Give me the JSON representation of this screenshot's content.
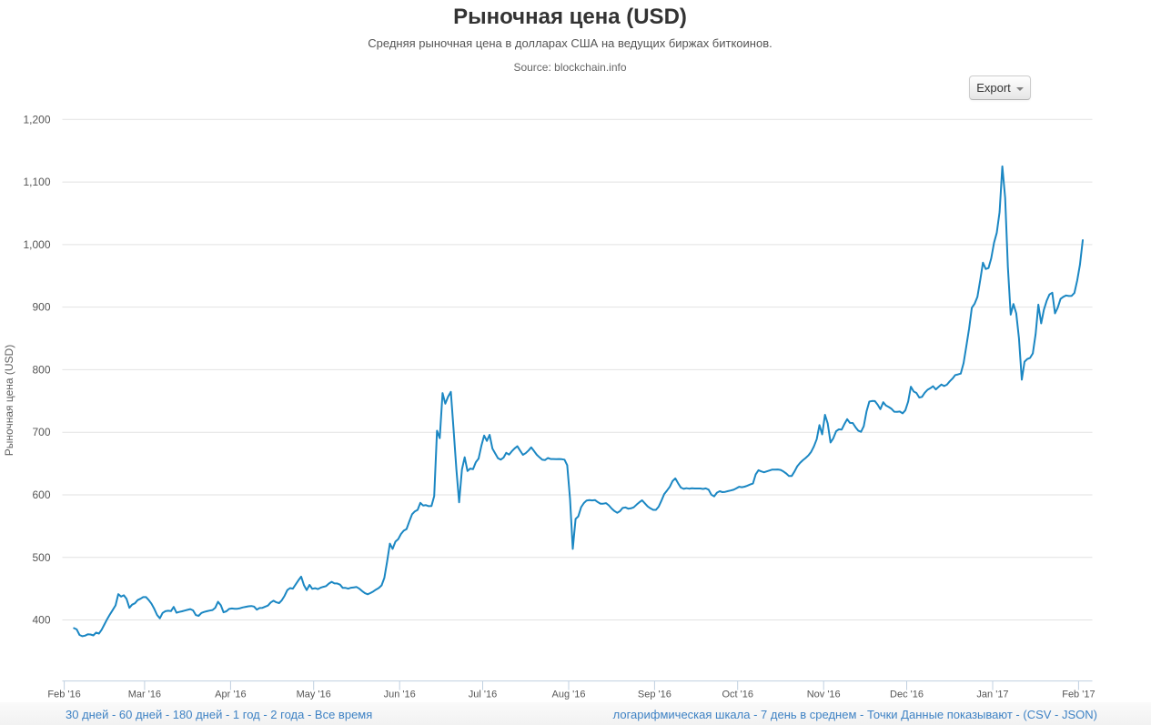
{
  "header": {
    "title": "Рыночная цена (USD)",
    "subtitle": "Средняя рыночная цена в долларах США на ведущих биржах биткоинов.",
    "source": "Source: blockchain.info",
    "export_label": "Export"
  },
  "footer": {
    "separator": " - ",
    "left_links": [
      "30 дней",
      "60 дней",
      "180 дней",
      "1 год",
      "2 года",
      "Все время"
    ],
    "right_links": [
      "логарифмическая шкала",
      "7 день в среднем",
      "Точки Данные показывают"
    ],
    "right_paren_links": [
      "CSV",
      "JSON"
    ]
  },
  "chart_data": {
    "type": "line",
    "title": "Рыночная цена (USD)",
    "ylabel": "Рыночная цена (USD)",
    "series_name": "Рыночная цена (USD)",
    "x_start_date": "2016-02-04",
    "x_end_date": "2017-02-02",
    "x_day_offset_origin": "2016-02-01",
    "first_point_day": 3.5,
    "x_domain_days": [
      -0.69,
      370.96
    ],
    "y_domain": [
      302.5,
      1200
    ],
    "y_ticks": [
      {
        "value": 400,
        "label": "400"
      },
      {
        "value": 500,
        "label": "500"
      },
      {
        "value": 600,
        "label": "600"
      },
      {
        "value": 700,
        "label": "700"
      },
      {
        "value": 800,
        "label": "800"
      },
      {
        "value": 900,
        "label": "900"
      },
      {
        "value": 1000,
        "label": "1,000"
      },
      {
        "value": 1100,
        "label": "1,100"
      },
      {
        "value": 1200,
        "label": "1,200"
      }
    ],
    "x_ticks": [
      {
        "day": 0,
        "label": "Feb '16"
      },
      {
        "day": 29,
        "label": "Mar '16"
      },
      {
        "day": 60,
        "label": "Apr '16"
      },
      {
        "day": 90,
        "label": "May '16"
      },
      {
        "day": 121,
        "label": "Jun '16"
      },
      {
        "day": 151,
        "label": "Jul '16"
      },
      {
        "day": 182,
        "label": "Aug '16"
      },
      {
        "day": 213,
        "label": "Sep '16"
      },
      {
        "day": 243,
        "label": "Oct '16"
      },
      {
        "day": 274,
        "label": "Nov '16"
      },
      {
        "day": 304,
        "label": "Dec '16"
      },
      {
        "day": 335,
        "label": "Jan '17"
      },
      {
        "day": 366,
        "label": "Feb '17"
      }
    ],
    "grid": true,
    "legend": "none",
    "colors": {
      "line": "#1b87c3",
      "grid": "#e2e2e2",
      "axis": "#c0d0e0",
      "tick_label": "#555555",
      "axis_title": "#606060"
    },
    "values": [
      387,
      384.9,
      376.1,
      374.0,
      374.9,
      377.1,
      376.8,
      375.3,
      379.8,
      378.3,
      384.4,
      393,
      401.4,
      409,
      415.9,
      423.3,
      441.4,
      437.4,
      439.5,
      433.6,
      419.4,
      424.5,
      426.6,
      431.7,
      433.9,
      436.5,
      436.5,
      431.8,
      425.9,
      417.6,
      408.0,
      402.7,
      411.2,
      414.0,
      414.7,
      414.2,
      420.8,
      411.6,
      412.8,
      413.9,
      415.0,
      416.2,
      417.3,
      415.3,
      407.7,
      406.6,
      411.2,
      412.9,
      414.0,
      415.1,
      415.9,
      419.6,
      429.2,
      423.4,
      412.2,
      413.9,
      417.6,
      418.4,
      417.9,
      417.9,
      418.8,
      420.1,
      421.0,
      421.8,
      422.3,
      421.5,
      416.5,
      419.1,
      419.4,
      421.3,
      423.1,
      428,
      430.8,
      428.2,
      426.9,
      431.4,
      438.5,
      447.8,
      451.0,
      450.1,
      456.6,
      463.4,
      469.3,
      455.4,
      447.7,
      456.1,
      449.8,
      450.8,
      449.3,
      451.5,
      453.0,
      454.2,
      458.2,
      461,
      458.3,
      458.3,
      456.4,
      451.2,
      451.2,
      450.0,
      451.5,
      452.1,
      452.7,
      449.9,
      446.2,
      442.8,
      441,
      443.1,
      445.5,
      448.6,
      451.1,
      455.3,
      467.3,
      492.8,
      522,
      513.6,
      525.3,
      529,
      537.4,
      542.7,
      545.3,
      557.4,
      569.0,
      573.5,
      576.0,
      587.2,
      583,
      583.6,
      581.9,
      582.1,
      598.0,
      702.5,
      690.6,
      762.6,
      745.6,
      757.0,
      764.5,
      704.5,
      640.5,
      588,
      640.5,
      660,
      638,
      642.0,
      641.0,
      652,
      658.0,
      678,
      694.7,
      686.2,
      696.0,
      674.0,
      666.2,
      658.5,
      656.2,
      659.4,
      667.2,
      664.2,
      669.6,
      674.2,
      677.6,
      670.8,
      663.9,
      666.5,
      670.8,
      675.8,
      670.1,
      664.1,
      659.9,
      656.1,
      655.6,
      658.8,
      657.3,
      657.3,
      657.1,
      657.3,
      657.0,
      656.2,
      647.3,
      593.4,
      513.6,
      561.5,
      565.6,
      580.4,
      586.9,
      591.0,
      591.5,
      591.1,
      591.7,
      588.5,
      585.9,
      585.8,
      586.8,
      583.3,
      578.1,
      574.2,
      571.3,
      573.8,
      579.1,
      579.9,
      577.8,
      578.4,
      580.1,
      584.3,
      588.0,
      591.3,
      586.4,
      581.5,
      578.4,
      576,
      576,
      581.0,
      590.8,
      601.3,
      607,
      612.7,
      622.1,
      626.3,
      618.4,
      611.6,
      609.6,
      610.6,
      609.8,
      610.5,
      610.2,
      610.2,
      610.1,
      609.4,
      610.3,
      608.2,
      600.2,
      597.5,
      603.4,
      605.8,
      604.4,
      604.7,
      606.0,
      607.0,
      608.1,
      610.3,
      612.9,
      612.2,
      613.1,
      614.6,
      616.6,
      618,
      632.6,
      639.4,
      637.5,
      636,
      637.5,
      638.9,
      640.4,
      640.3,
      640.5,
      639.8,
      637.4,
      634.2,
      630.0,
      630.0,
      637.4,
      645.6,
      651.0,
      655.2,
      658.8,
      662.9,
      668.8,
      677.3,
      689.0,
      711.5,
      696.7,
      727.9,
      714.0,
      683.6,
      690.2,
      701.6,
      704.6,
      704.2,
      712.9,
      721,
      715,
      714.8,
      708.2,
      702.6,
      700.7,
      709.6,
      733.6,
      749,
      750,
      749.9,
      744.1,
      736.9,
      748,
      742.8,
      740.4,
      737.5,
      732.9,
      732.6,
      733.1,
      730.2,
      735,
      749.0,
      772.9,
      765.1,
      762.8,
      755.6,
      756.6,
      763.1,
      767.9,
      770.3,
      773.5,
      768.5,
      772.5,
      776.4,
      773.9,
      776.1,
      781.4,
      785.8,
      791.4,
      792.5,
      793.8,
      810.3,
      837.2,
      865.9,
      899.0,
      905.6,
      916.3,
      943.1,
      971,
      961,
      962.5,
      978,
      1003.0,
      1019,
      1052.1,
      1125,
      1075.0,
      964.3,
      888,
      905,
      890,
      850,
      784,
      812.8,
      817.0,
      819.0,
      826,
      857.0,
      904,
      874,
      896,
      910.4,
      920.2,
      923,
      890,
      899.2,
      913.2,
      916.5,
      918.7,
      917.8,
      918.1,
      922.6,
      942.7,
      967.7,
      1007
    ]
  }
}
